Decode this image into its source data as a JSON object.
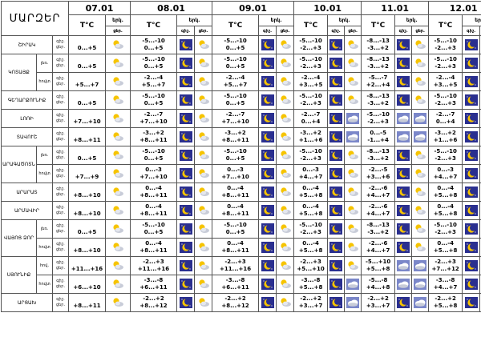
{
  "header": {
    "region_title": "ՄԱՐԶԵՐ",
    "temp_label": "T°C",
    "precip_label": "երկ.",
    "day_short": "ցերկ.",
    "night_short": "գիշ.",
    "day_abbr": "ցեր."
  },
  "dates": [
    "07.01",
    "08.01",
    "09.01",
    "10.01",
    "11.01",
    "12.01"
  ],
  "row_labels": {
    "night": "գիշ.",
    "day": "ցեր."
  },
  "regions": [
    {
      "name": "ՇԻՐԱԿ",
      "sub": "",
      "d07": {
        "night": "",
        "day": "0...+5",
        "icon": "sun-cloud-icon"
      },
      "days": [
        {
          "night": "-5...-10",
          "day": "0...+5",
          "icons": [
            "moon-icon",
            "sun-cloud-icon"
          ]
        },
        {
          "night": "-5...-10",
          "day": "0...+5",
          "icons": [
            "moon-icon",
            "sun-cloud-icon"
          ]
        },
        {
          "night": "-5...-10",
          "day": "-2...+3",
          "icons": [
            "moon-icon",
            "sun-cloud-icon"
          ]
        },
        {
          "night": "-8...-13",
          "day": "-3...+2",
          "icons": [
            "moon-icon",
            "sun-cloud-icon"
          ]
        },
        {
          "night": "-5...-10",
          "day": "-2...+3",
          "icons": [
            "moon-icon",
            "sun-cloud-icon"
          ]
        }
      ]
    },
    {
      "name": "ԿՈՏԱՅՔ",
      "sub": "լեռ.",
      "d07": {
        "night": "",
        "day": "0...+5",
        "icon": "sun-cloud-icon"
      },
      "days": [
        {
          "night": "-5...-10",
          "day": "0...+5",
          "icons": [
            "moon-icon",
            "sun-cloud-icon"
          ]
        },
        {
          "night": "-5...-10",
          "day": "0...+5",
          "icons": [
            "moon-icon",
            "sun-cloud-icon"
          ]
        },
        {
          "night": "-5...-10",
          "day": "-2...+3",
          "icons": [
            "moon-icon",
            "sun-cloud-icon"
          ]
        },
        {
          "night": "-8...-13",
          "day": "-3...+2",
          "icons": [
            "moon-icon",
            "sun-cloud-icon"
          ]
        },
        {
          "night": "-5...-10",
          "day": "-2...+3",
          "icons": [
            "moon-icon",
            "sun-cloud-icon"
          ]
        }
      ]
    },
    {
      "name": "",
      "sub": "հովտ",
      "d07": {
        "night": "",
        "day": "+5...+7",
        "icon": "sun-cloud-icon"
      },
      "days": [
        {
          "night": "-2...-4",
          "day": "+5...+7",
          "icons": [
            "moon-icon",
            "sun-cloud-icon"
          ]
        },
        {
          "night": "-2...-4",
          "day": "+5...+7",
          "icons": [
            "moon-icon",
            "sun-cloud-icon"
          ]
        },
        {
          "night": "-2...-4",
          "day": "+3...+5",
          "icons": [
            "moon-icon",
            "sun-cloud-icon"
          ]
        },
        {
          "night": "-5...-7",
          "day": "+2...+4",
          "icons": [
            "moon-icon",
            "sun-cloud-icon"
          ]
        },
        {
          "night": "-2...-4",
          "day": "+3...+5",
          "icons": [
            "moon-icon",
            "sun-cloud-icon"
          ]
        }
      ]
    },
    {
      "name": "ԳԵՂԱՐՔՈՒՆԻՔ",
      "sub": "",
      "d07": {
        "night": "",
        "day": "0...+5",
        "icon": "sun-cloud-icon"
      },
      "days": [
        {
          "night": "-5...-10",
          "day": "0...+5",
          "icons": [
            "moon-icon",
            "sun-cloud-icon"
          ]
        },
        {
          "night": "-5...-10",
          "day": "0...+5",
          "icons": [
            "moon-icon",
            "sun-cloud-icon"
          ]
        },
        {
          "night": "-5...-10",
          "day": "-2...+3",
          "icons": [
            "moon-icon",
            "sun-cloud-icon"
          ]
        },
        {
          "night": "-8...-13",
          "day": "-3...+2",
          "icons": [
            "moon-icon",
            "sun-cloud-icon"
          ]
        },
        {
          "night": "-5...-10",
          "day": "-2...+3",
          "icons": [
            "moon-icon",
            "sun-cloud-icon"
          ]
        }
      ]
    },
    {
      "name": "ԼՈՌԻ",
      "sub": "",
      "d07": {
        "night": "",
        "day": "+7...+10",
        "icon": "sun-cloud-icon"
      },
      "days": [
        {
          "night": "-2...-7",
          "day": "+7...+10",
          "icons": [
            "moon-icon",
            "sun-cloud-icon"
          ]
        },
        {
          "night": "-2...-7",
          "day": "+7...+10",
          "icons": [
            "moon-icon",
            "sun-cloud-icon"
          ]
        },
        {
          "night": "-2...-7",
          "day": "0...+4",
          "icons": [
            "moon-icon",
            "cloud-icon"
          ]
        },
        {
          "night": "-5...-10",
          "day": "-2...+3",
          "icons": [
            "cloud-icon",
            "cloud-icon"
          ]
        },
        {
          "night": "-2...-7",
          "day": "0...+4",
          "icons": [
            "moon-icon",
            "cloud-icon"
          ]
        }
      ]
    },
    {
      "name": "ՏԱՎՈՒՇ",
      "sub": "",
      "d07": {
        "night": "",
        "day": "+8...+11",
        "icon": "sun-cloud-icon"
      },
      "days": [
        {
          "night": "-3...+2",
          "day": "+8...+11",
          "icons": [
            "moon-icon",
            "sun-cloud-icon"
          ]
        },
        {
          "night": "-3...+2",
          "day": "+8...+11",
          "icons": [
            "moon-icon",
            "sun-cloud-icon"
          ]
        },
        {
          "night": "-3...+2",
          "day": "+1...+6",
          "icons": [
            "moon-icon",
            "cloud-icon"
          ]
        },
        {
          "night": "0...-5",
          "day": "-1...+4",
          "icons": [
            "cloud-icon",
            "cloud-icon"
          ]
        },
        {
          "night": "-3...+2",
          "day": "+1...+6",
          "icons": [
            "moon-icon",
            "cloud-icon"
          ]
        }
      ]
    },
    {
      "name": "ԱՐԱԳԱԾՈՏՆ",
      "sub": "լեռ.",
      "d07": {
        "night": "",
        "day": "0...+5",
        "icon": "sun-cloud-icon"
      },
      "days": [
        {
          "night": "-5...-10",
          "day": "0...+5",
          "icons": [
            "moon-icon",
            "sun-cloud-icon"
          ]
        },
        {
          "night": "-5...-10",
          "day": "0...+5",
          "icons": [
            "moon-icon",
            "sun-cloud-icon"
          ]
        },
        {
          "night": "-5...-10",
          "day": "-2...+3",
          "icons": [
            "moon-icon",
            "sun-cloud-icon"
          ]
        },
        {
          "night": "-8...-13",
          "day": "-3...+2",
          "icons": [
            "moon-icon",
            "sun-cloud-icon"
          ]
        },
        {
          "night": "-5...-10",
          "day": "-2...+3",
          "icons": [
            "moon-icon",
            "sun-cloud-icon"
          ]
        }
      ]
    },
    {
      "name": "",
      "sub": "հովտ",
      "d07": {
        "night": "",
        "day": "+7...+9",
        "icon": "sun-cloud-icon"
      },
      "days": [
        {
          "night": "0...-3",
          "day": "+7...+10",
          "icons": [
            "moon-icon",
            "sun-cloud-icon"
          ]
        },
        {
          "night": "0...-3",
          "day": "+7...+10",
          "icons": [
            "moon-icon",
            "sun-cloud-icon"
          ]
        },
        {
          "night": "0...-3",
          "day": "+4...+7",
          "icons": [
            "moon-icon",
            "sun-cloud-icon"
          ]
        },
        {
          "night": "-2...-5",
          "day": "+3...+6",
          "icons": [
            "moon-icon",
            "sun-cloud-icon"
          ]
        },
        {
          "night": "0...-3",
          "day": "+4...+7",
          "icons": [
            "moon-icon",
            "sun-cloud-icon"
          ]
        }
      ]
    },
    {
      "name": "ԱՐԱՐԱՏ",
      "sub": "",
      "d07": {
        "night": "",
        "day": "+8...+10",
        "icon": "sun-cloud-icon"
      },
      "days": [
        {
          "night": "0...-4",
          "day": "+8...+11",
          "icons": [
            "moon-icon",
            "sun-cloud-icon"
          ]
        },
        {
          "night": "0...-4",
          "day": "+8...+11",
          "icons": [
            "moon-icon",
            "sun-cloud-icon"
          ]
        },
        {
          "night": "0...-4",
          "day": "+5...+8",
          "icons": [
            "moon-icon",
            "sun-cloud-icon"
          ]
        },
        {
          "night": "-2...-6",
          "day": "+4...+7",
          "icons": [
            "moon-icon",
            "sun-cloud-icon"
          ]
        },
        {
          "night": "0...-4",
          "day": "+5...+8",
          "icons": [
            "moon-icon",
            "sun-cloud-icon"
          ]
        }
      ]
    },
    {
      "name": "ԱՐՄԱՎԻՐ",
      "sub": "",
      "d07": {
        "night": "",
        "day": "+8...+10",
        "icon": "sun-cloud-icon"
      },
      "days": [
        {
          "night": "0...-4",
          "day": "+8...+11",
          "icons": [
            "moon-icon",
            "sun-cloud-icon"
          ]
        },
        {
          "night": "0...-4",
          "day": "+8...+11",
          "icons": [
            "moon-icon",
            "sun-cloud-icon"
          ]
        },
        {
          "night": "0...-4",
          "day": "+5...+8",
          "icons": [
            "moon-icon",
            "sun-cloud-icon"
          ]
        },
        {
          "night": "-2...-6",
          "day": "+4...+7",
          "icons": [
            "moon-icon",
            "sun-cloud-icon"
          ]
        },
        {
          "night": "0...-4",
          "day": "+5...+8",
          "icons": [
            "moon-icon",
            "sun-cloud-icon"
          ]
        }
      ]
    },
    {
      "name": "ՎԱՅՈՑ ՁՈՐ",
      "sub": "լեռ.",
      "d07": {
        "night": "",
        "day": "0...+5",
        "icon": "sun-cloud-icon"
      },
      "days": [
        {
          "night": "-5...-10",
          "day": "0...+5",
          "icons": [
            "moon-icon",
            "sun-cloud-icon"
          ]
        },
        {
          "night": "-5...-10",
          "day": "0...+5",
          "icons": [
            "moon-icon",
            "sun-cloud-icon"
          ]
        },
        {
          "night": "-5...-10",
          "day": "-2...+3",
          "icons": [
            "moon-icon",
            "sun-cloud-icon"
          ]
        },
        {
          "night": "-8...-13",
          "day": "-3...+2",
          "icons": [
            "moon-icon",
            "sun-cloud-icon"
          ]
        },
        {
          "night": "-5...-10",
          "day": "-2...+3",
          "icons": [
            "moon-icon",
            "sun-cloud-icon"
          ]
        }
      ]
    },
    {
      "name": "",
      "sub": "հովտ",
      "d07": {
        "night": "",
        "day": "+8...+10",
        "icon": "sun-cloud-icon"
      },
      "days": [
        {
          "night": "0...-4",
          "day": "+8...+11",
          "icons": [
            "moon-icon",
            "sun-cloud-icon"
          ]
        },
        {
          "night": "0...-4",
          "day": "+8...+11",
          "icons": [
            "moon-icon",
            "sun-cloud-icon"
          ]
        },
        {
          "night": "0...-4",
          "day": "+5...+8",
          "icons": [
            "moon-icon",
            "sun-cloud-icon"
          ]
        },
        {
          "night": "-2...-6",
          "day": "+4...+7",
          "icons": [
            "moon-icon",
            "sun-cloud-icon"
          ]
        },
        {
          "night": "0...-4",
          "day": "+5...+8",
          "icons": [
            "moon-icon",
            "sun-cloud-icon"
          ]
        }
      ]
    },
    {
      "name": "ՍՅՈՒՆԻՔ",
      "sub": "հով.",
      "d07": {
        "night": "",
        "day": "+11...+16",
        "icon": "sun-cloud-icon"
      },
      "days": [
        {
          "night": "-2...+3",
          "day": "+11...+16",
          "icons": [
            "moon-icon",
            "sun-cloud-icon"
          ]
        },
        {
          "night": "-2...+3",
          "day": "+11...+16",
          "icons": [
            "moon-icon",
            "sun-cloud-icon"
          ]
        },
        {
          "night": "-2...+3",
          "day": "+5...+10",
          "icons": [
            "moon-icon",
            "sun-cloud-icon"
          ]
        },
        {
          "night": "-5...+10",
          "day": "+5...+8",
          "icons": [
            "cloud-icon",
            "cloud-icon"
          ]
        },
        {
          "night": "-2...+3",
          "day": "+7...+12",
          "icons": [
            "moon-icon",
            "cloud-icon"
          ]
        }
      ]
    },
    {
      "name": "",
      "sub": "հովտ",
      "d07": {
        "night": "",
        "day": "+6...+10",
        "icon": "sun-cloud-icon"
      },
      "days": [
        {
          "night": "-3...-8",
          "day": "+6...+11",
          "icons": [
            "moon-icon",
            "sun-cloud-icon"
          ]
        },
        {
          "night": "-3...-8",
          "day": "+6...+11",
          "icons": [
            "moon-icon",
            "sun-cloud-icon"
          ]
        },
        {
          "night": "-3...-8",
          "day": "+5...+8",
          "icons": [
            "moon-icon",
            "cloud-icon"
          ]
        },
        {
          "night": "-5...-8",
          "day": "+4...+8",
          "icons": [
            "cloud-icon",
            "cloud-icon"
          ]
        },
        {
          "night": "-3...-8",
          "day": "+4...+7",
          "icons": [
            "moon-icon",
            "cloud-icon"
          ]
        }
      ]
    },
    {
      "name": "ԱՐՑԱԽ",
      "sub": "",
      "d07": {
        "night": "",
        "day": "+8...+11",
        "icon": "sun-cloud-icon"
      },
      "days": [
        {
          "night": "-2...+2",
          "day": "+8...+12",
          "icons": [
            "moon-icon",
            "sun-cloud-icon"
          ]
        },
        {
          "night": "-2...+2",
          "day": "+8...+12",
          "icons": [
            "moon-icon",
            "sun-cloud-icon"
          ]
        },
        {
          "night": "-2...+2",
          "day": "+3...+7",
          "icons": [
            "moon-icon",
            "cloud-icon"
          ]
        },
        {
          "night": "-2...+2",
          "day": "+3...+7",
          "icons": [
            "moon-icon",
            "cloud-icon"
          ]
        },
        {
          "night": "-2...+2",
          "day": "+5...+8",
          "icons": [
            "moon-icon",
            "cloud-icon"
          ]
        }
      ]
    }
  ],
  "colors": {
    "border": "#555555",
    "night_icon_bg": "#2a2f8f",
    "sun": "#f6c400",
    "cloud": "#c8ccd8",
    "cloud_bg": "#7b87c9"
  }
}
